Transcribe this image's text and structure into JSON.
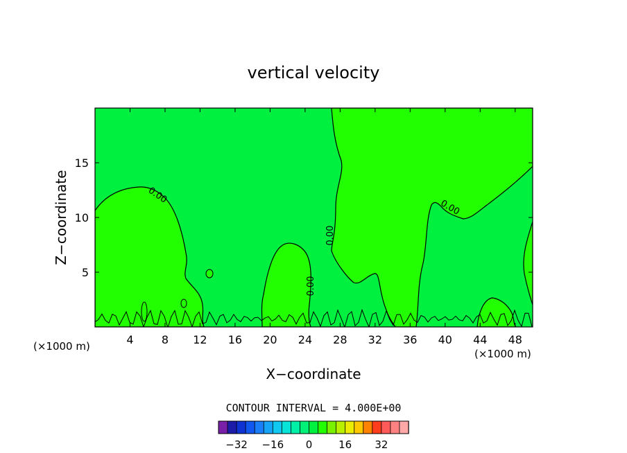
{
  "chart_data": {
    "type": "contour",
    "title": "vertical velocity",
    "xlabel": "X−coordinate",
    "ylabel": "Z−coordinate",
    "x_unit_left": "(×1000 m)",
    "x_unit_right": "(×1000 m)",
    "xlim": [
      0,
      50
    ],
    "ylim": [
      0,
      20
    ],
    "x_ticks": [
      4,
      8,
      12,
      16,
      20,
      24,
      28,
      32,
      36,
      40,
      44,
      48
    ],
    "y_ticks": [
      5,
      10,
      15
    ],
    "contour_label": "0.00",
    "contour_interval_text": "CONTOUR INTERVAL = 4.000E+00",
    "colorbar": {
      "ticks": [
        -32,
        -16,
        0,
        16,
        32
      ],
      "tick_labels": [
        "−32",
        "−16",
        "0",
        "16",
        "32"
      ],
      "levels": [
        -36,
        -32,
        -28,
        -24,
        -20,
        -16,
        -12,
        -8,
        -4,
        0,
        4,
        8,
        12,
        16,
        20,
        24,
        28,
        32,
        36
      ],
      "colors": [
        "#7a1fa8",
        "#1c1ca8",
        "#0f32d2",
        "#1058f0",
        "#1a7ef8",
        "#16a4f6",
        "#10c8f0",
        "#08e4d8",
        "#00f0a8",
        "#00f078",
        "#00f040",
        "#22ff00",
        "#78f000",
        "#b8f000",
        "#ecec00",
        "#ffc800",
        "#ff8200",
        "#ff3c1c",
        "#ff5a5a",
        "#ff8282",
        "#ffa8a8"
      ]
    },
    "regions": {
      "negative_color": "#00f040",
      "positive_color": "#22ff00"
    }
  }
}
